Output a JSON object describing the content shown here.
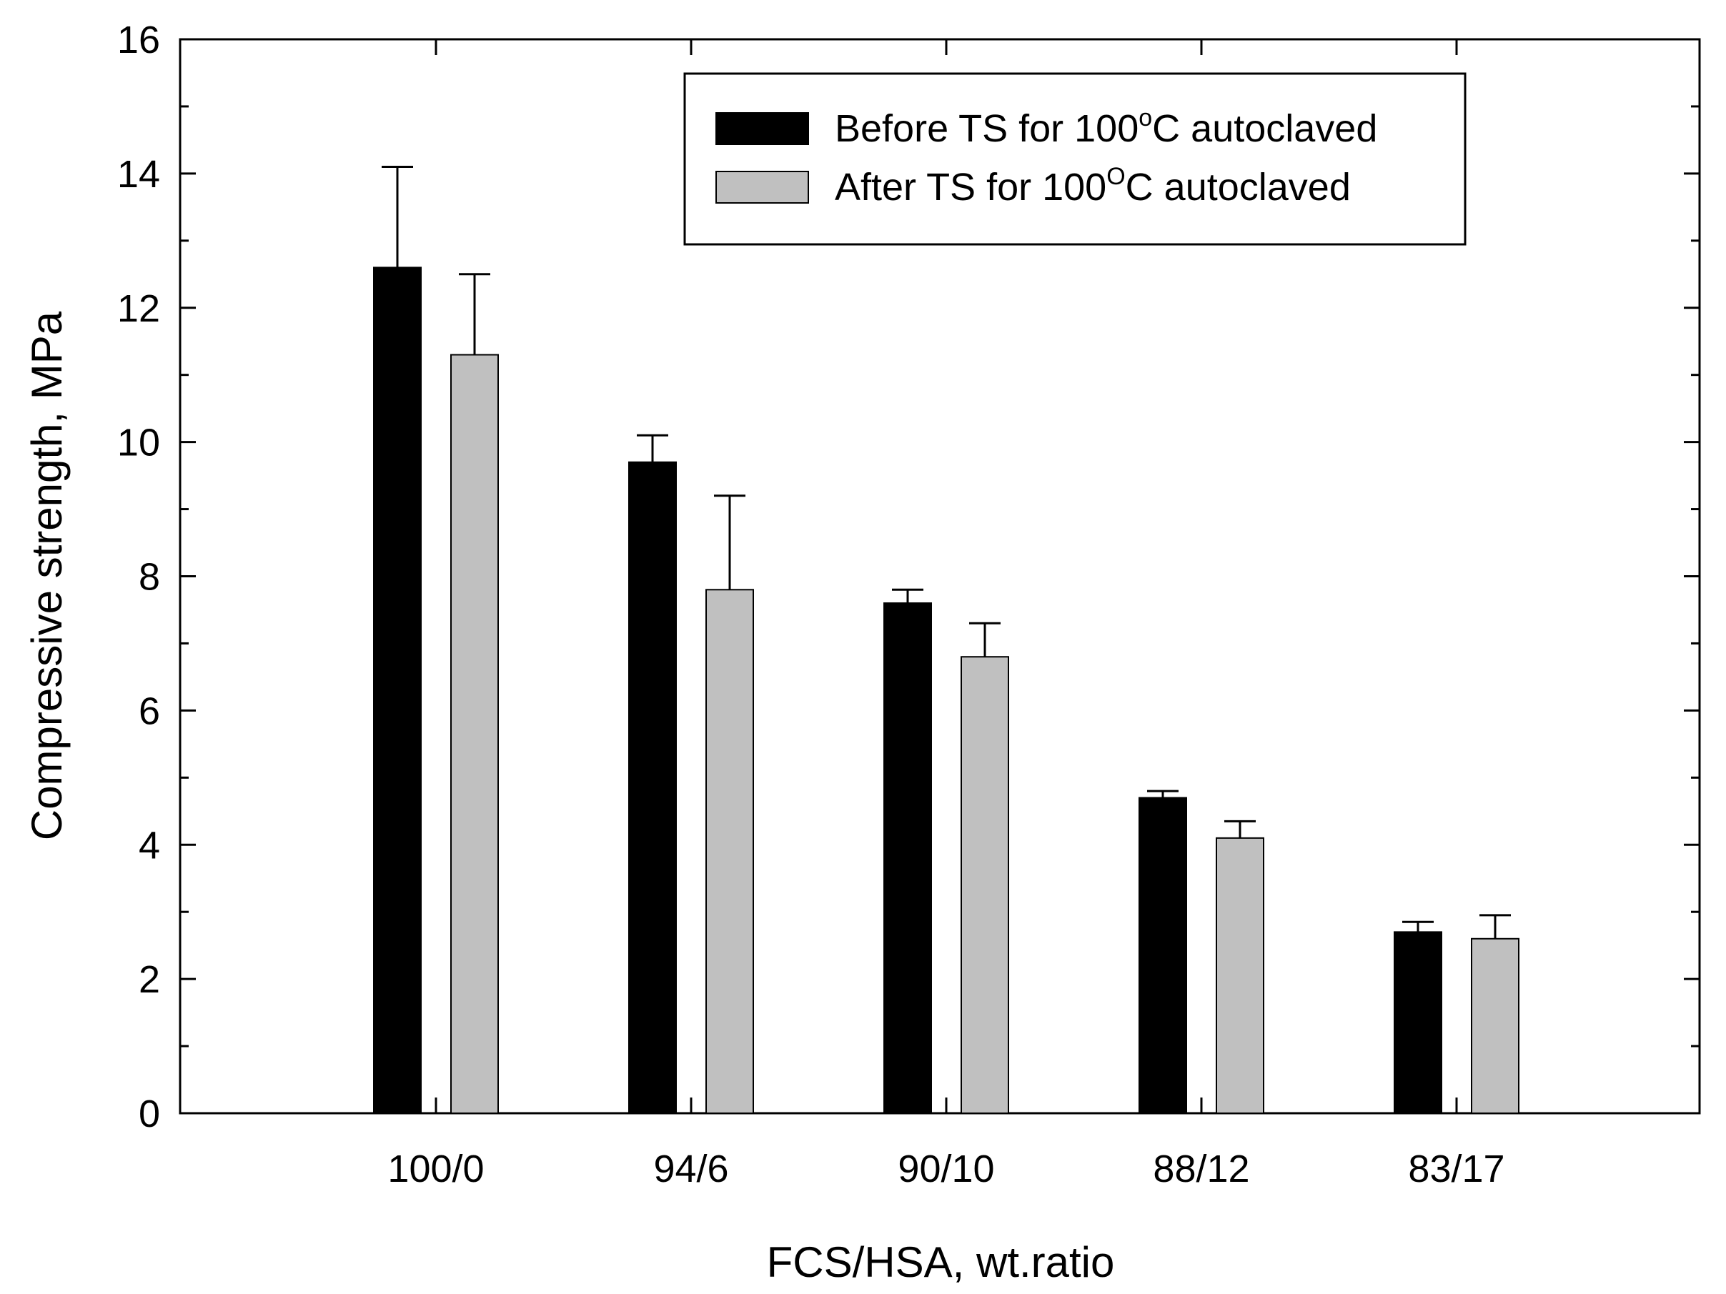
{
  "chart_data": {
    "type": "bar",
    "title": "",
    "xlabel": "FCS/HSA, wt.ratio",
    "ylabel": "Compressive strength, MPa",
    "ylim": [
      0,
      16
    ],
    "yticks": [
      0,
      2,
      4,
      6,
      8,
      10,
      12,
      14,
      16
    ],
    "ytick_labels": [
      "0",
      "2",
      "4",
      "6",
      "8",
      "10",
      "12",
      "14",
      "16"
    ],
    "grid": false,
    "legend_position": "top-right",
    "categories": [
      "100/0",
      "94/6",
      "90/10",
      "88/12",
      "83/17"
    ],
    "series": [
      {
        "name": "Before TS for 100oC autoclaved",
        "legend_main": "Before TS for 100",
        "legend_sup": "o",
        "legend_tail": "C autoclaved",
        "color": "#000000",
        "values": [
          12.6,
          9.7,
          7.6,
          4.7,
          2.7
        ],
        "error_upper": [
          1.5,
          0.4,
          0.2,
          0.1,
          0.15
        ]
      },
      {
        "name": "After TS for 100OC autoclaved",
        "legend_main": "After TS for 100",
        "legend_sup": "O",
        "legend_tail": "C autoclaved",
        "color": "#c0c0c0",
        "values": [
          11.3,
          7.8,
          6.8,
          4.1,
          2.6
        ],
        "error_upper": [
          1.2,
          1.4,
          0.5,
          0.25,
          0.35
        ]
      }
    ]
  }
}
